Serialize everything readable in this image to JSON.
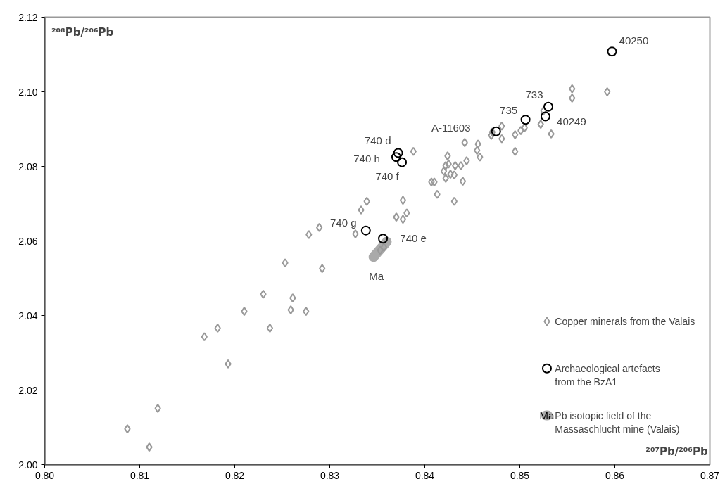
{
  "chart_data": {
    "type": "scatter",
    "xlabel": "²⁰⁷Pb/²⁰⁶Pb",
    "ylabel": "²⁰⁸Pb/²⁰⁶Pb",
    "xlim": [
      0.8,
      0.87
    ],
    "ylim": [
      2.0,
      2.12
    ],
    "xticks": [
      {
        "value": 0.8,
        "label": "0.80"
      },
      0.81,
      0.82,
      0.83,
      0.84,
      0.85,
      0.86,
      0.87
    ],
    "yticks": [
      {
        "value": 2.0,
        "label": "2.00"
      },
      2.02,
      2.04,
      2.06,
      2.08,
      {
        "value": 2.1,
        "label": "2.10"
      },
      2.12
    ],
    "grid": false,
    "legend": "bottom right",
    "series": [
      {
        "name": "Copper minerals from the Valais",
        "color": "#999999",
        "marker": "diamond",
        "x": [
          0.8087,
          0.811,
          0.8119,
          0.8168,
          0.8182,
          0.8193,
          0.821,
          0.823,
          0.8237,
          0.8253,
          0.8261,
          0.8259,
          0.8275,
          0.8292,
          0.8278,
          0.8289,
          0.8327,
          0.8333,
          0.8339,
          0.837,
          0.8377,
          0.8381,
          0.8377,
          0.8388,
          0.8353,
          0.8357,
          0.8407,
          0.841,
          0.8413,
          0.8431,
          0.844,
          0.8424,
          0.8442,
          0.8456,
          0.8455,
          0.8458,
          0.842,
          0.8422,
          0.8425,
          0.8427,
          0.8431,
          0.8432,
          0.8438,
          0.8444,
          0.8422,
          0.8471,
          0.847,
          0.8481,
          0.8481,
          0.8495,
          0.8495,
          0.8501,
          0.8505,
          0.8522,
          0.8525,
          0.8533,
          0.8555,
          0.8555,
          0.8592
        ],
        "values": [
          2.0096,
          2.0047,
          2.0151,
          2.0343,
          2.0366,
          2.027,
          2.0411,
          2.0457,
          2.0366,
          2.0541,
          2.0447,
          2.0415,
          2.0411,
          2.0526,
          2.0617,
          2.0636,
          2.0619,
          2.0683,
          2.0706,
          2.0664,
          2.0709,
          2.0675,
          2.0658,
          2.084,
          2.0575,
          2.0583,
          2.0758,
          2.0758,
          2.0725,
          2.0706,
          2.076,
          2.0828,
          2.0864,
          2.086,
          2.0843,
          2.0825,
          2.0787,
          2.0802,
          2.0806,
          2.0779,
          2.0777,
          2.0802,
          2.0802,
          2.0815,
          2.0768,
          2.0892,
          2.0883,
          2.0908,
          2.0874,
          2.0885,
          2.084,
          2.0896,
          2.0904,
          2.0913,
          2.0949,
          2.0887,
          2.1008,
          2.0983,
          2.1
        ]
      },
      {
        "name": "Archaeological artefacts\nfrom the BzA1",
        "color": "#000000",
        "marker": "circle",
        "x": [
          0.8597,
          0.853,
          0.8527,
          0.8506,
          0.8475,
          0.8372,
          0.837,
          0.8376,
          0.8338,
          0.8356
        ],
        "values": [
          2.1108,
          2.096,
          2.0934,
          2.0925,
          2.0894,
          2.0836,
          2.0825,
          2.0811,
          2.0628,
          2.0606
        ]
      },
      {
        "name": "Pb isotopic field of the\nMassaschlucht mine (Valais)",
        "type": "line",
        "color": "#aaaaaa",
        "x": [
          0.8346,
          0.836
        ],
        "values": [
          2.0557,
          2.0598
        ]
      }
    ],
    "annotations": [
      {
        "text": "40250",
        "x": 0.8597,
        "y": 2.1108
      },
      {
        "text": "733",
        "x": 0.853,
        "y": 2.096
      },
      {
        "text": "40249",
        "x": 0.8527,
        "y": 2.0934
      },
      {
        "text": "735",
        "x": 0.8506,
        "y": 2.0925
      },
      {
        "text": "A-11603",
        "x": 0.8475,
        "y": 2.0894
      },
      {
        "text": "740 d",
        "x": 0.8372,
        "y": 2.0836
      },
      {
        "text": "740 h",
        "x": 0.837,
        "y": 2.0825
      },
      {
        "text": "740 f",
        "x": 0.8376,
        "y": 2.0811
      },
      {
        "text": "740 g",
        "x": 0.8338,
        "y": 2.0628
      },
      {
        "text": "740 e",
        "x": 0.8356,
        "y": 2.0606
      },
      {
        "text": "Ma",
        "x": 0.8346,
        "y": 2.0557
      }
    ]
  }
}
